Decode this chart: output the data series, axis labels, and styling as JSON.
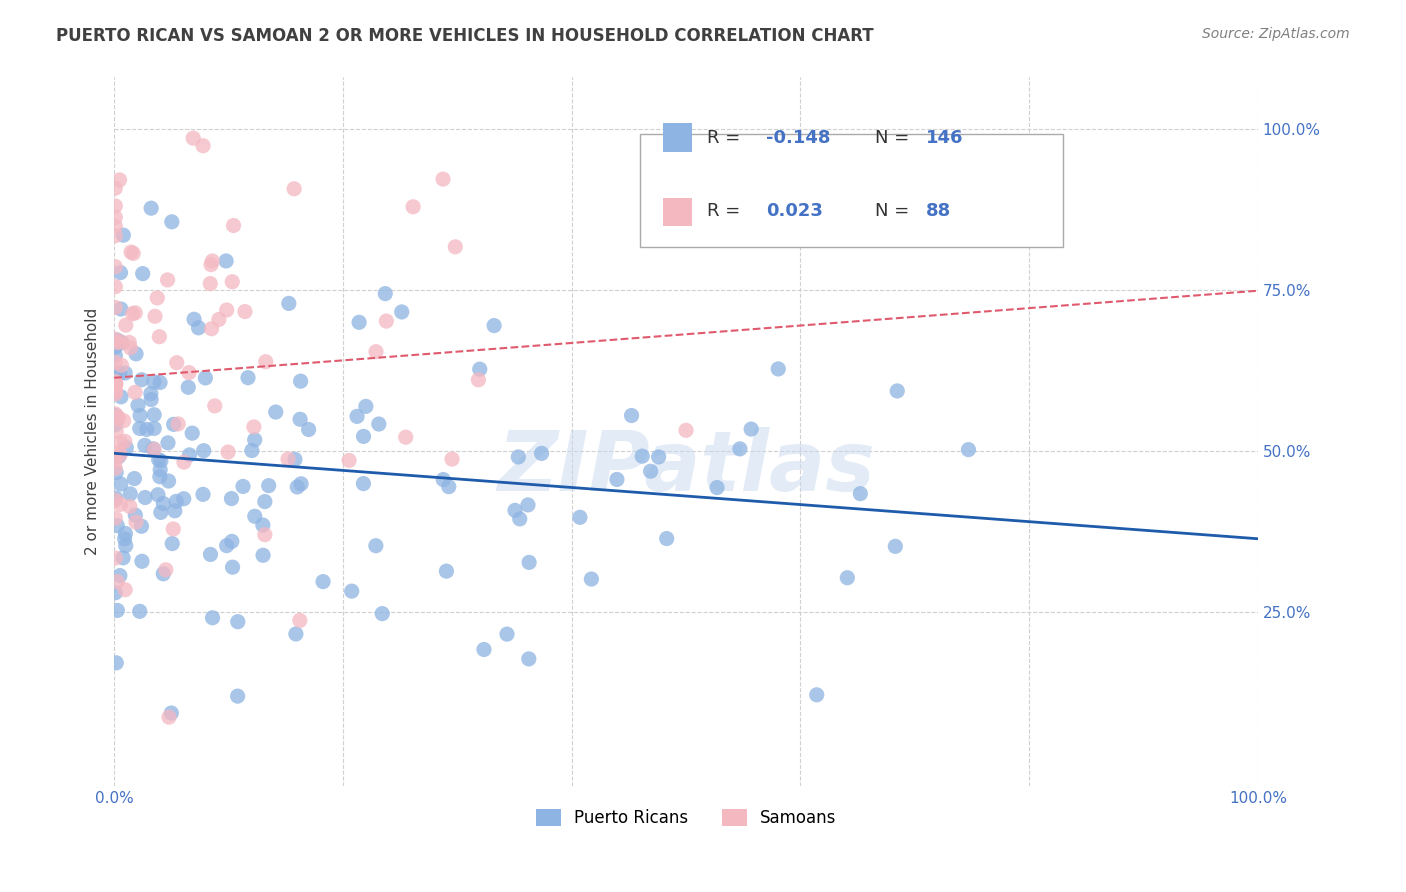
{
  "title": "PUERTO RICAN VS SAMOAN 2 OR MORE VEHICLES IN HOUSEHOLD CORRELATION CHART",
  "source": "Source: ZipAtlas.com",
  "ylabel": "2 or more Vehicles in Household",
  "xlabel": "",
  "r_puerto_rican": -0.148,
  "n_puerto_rican": 146,
  "r_samoan": 0.023,
  "n_samoan": 88,
  "xlim": [
    0.0,
    1.0
  ],
  "ylim": [
    0.0,
    1.0
  ],
  "xtick_labels": [
    "0.0%",
    "100.0%"
  ],
  "ytick_labels": [
    "25.0%",
    "50.0%",
    "75.0%",
    "100.0%"
  ],
  "ytick_positions": [
    0.25,
    0.5,
    0.75,
    1.0
  ],
  "xtick_positions": [
    0.0,
    1.0
  ],
  "blue_color": "#8db4e2",
  "pink_color": "#f4b8c1",
  "blue_line_color": "#1f5bab",
  "pink_line_color": "#e05a6e",
  "grid_color": "#d0d0d0",
  "title_color": "#404040",
  "axis_label_color": "#404040",
  "tick_label_color": "#4472c4",
  "source_color": "#808080",
  "legend_r_color": "#404040",
  "legend_n_color": "#4472c4",
  "watermark_color": "#c8d8f0",
  "watermark_text": "ZIPatlas",
  "background_color": "#ffffff"
}
